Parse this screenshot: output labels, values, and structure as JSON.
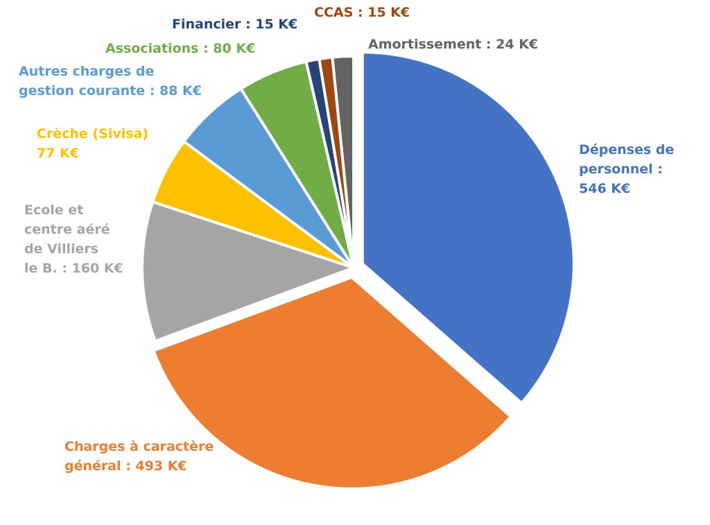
{
  "chart_data": {
    "type": "pie",
    "title": "",
    "unit": "K€",
    "legend": "none",
    "start_angle_deg": 0,
    "direction": "clockwise",
    "slices": [
      {
        "name": "Dépenses de personnel",
        "value": 546,
        "color": "#4472C4",
        "exploded": true,
        "label_lines": [
          "Dépenses de",
          "personnel :",
          "546 K€"
        ]
      },
      {
        "name": "Charges à caractère général",
        "value": 493,
        "color": "#ED7D31",
        "exploded": true,
        "label_lines": [
          "Charges à caractère",
          "général : 493 K€"
        ]
      },
      {
        "name": "Ecole et centre aéré de Villiers le B.",
        "value": 160,
        "color": "#A5A5A5",
        "exploded": false,
        "label_lines": [
          "Ecole et",
          "centre aéré",
          "de Villiers",
          "le B. : 160 K€"
        ]
      },
      {
        "name": "Crèche (Sivisa)",
        "value": 77,
        "color": "#FFC000",
        "exploded": false,
        "label_lines": [
          "Crèche (Sivisa)",
          "77 K€"
        ]
      },
      {
        "name": "Autres charges de gestion courante",
        "value": 88,
        "color": "#5B9BD5",
        "exploded": false,
        "label_lines": [
          "Autres charges de",
          "gestion courante : 88 K€"
        ]
      },
      {
        "name": "Associations",
        "value": 80,
        "color": "#70AD47",
        "exploded": false,
        "label_lines": [
          "Associations : 80 K€"
        ]
      },
      {
        "name": "Financier",
        "value": 15,
        "color": "#264478",
        "exploded": false,
        "label_lines": [
          "Financier : 15 K€"
        ]
      },
      {
        "name": "CCAS",
        "value": 15,
        "color": "#9E480E",
        "exploded": false,
        "label_lines": [
          "CCAS : 15 K€"
        ]
      },
      {
        "name": "Amortissement",
        "value": 24,
        "color": "#636363",
        "exploded": false,
        "label_lines": [
          "Amortissement : 24 K€"
        ]
      }
    ]
  }
}
